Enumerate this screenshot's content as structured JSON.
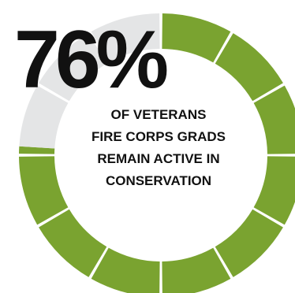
{
  "chart_data": {
    "type": "pie",
    "style": "donut",
    "segments": 12,
    "values": [
      76,
      24
    ],
    "colors": {
      "filled": "#7aa330",
      "remaining": "#e4e5e6",
      "divider": "#ffffff"
    },
    "headline": "76%",
    "caption_lines": [
      "OF VETERANS",
      "FIRE CORPS GRADS",
      "REMAIN ACTIVE IN",
      "CONSERVATION"
    ]
  }
}
